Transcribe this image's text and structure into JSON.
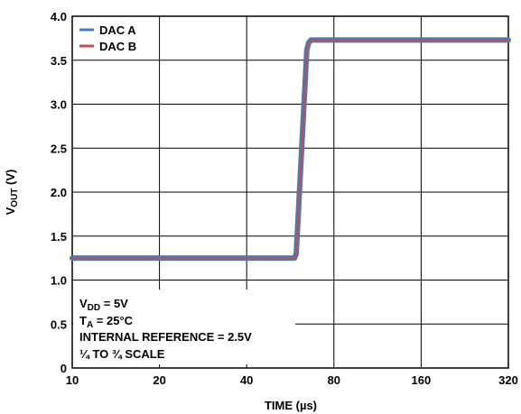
{
  "chart_data": {
    "type": "line",
    "xlabel": "TIME (µs)",
    "ylabel_main": "V",
    "ylabel_sub": "OUT",
    "ylabel_unit": " (V)",
    "x_ticks": [
      "10",
      "20",
      "40",
      "80",
      "160",
      "320"
    ],
    "x_scale": "log2",
    "xlim": [
      10,
      320
    ],
    "ylim": [
      0,
      4.0
    ],
    "y_ticks": [
      "0",
      "0.5",
      "1.0",
      "1.5",
      "2.0",
      "2.5",
      "3.0",
      "3.5",
      "4.0"
    ],
    "grid": true,
    "legend_position": "top-left",
    "series": [
      {
        "name": "DAC A",
        "color": "#4a79b8",
        "x": [
          10,
          58.5,
          59.3,
          64.5,
          65.5,
          66.7,
          320
        ],
        "y": [
          1.25,
          1.25,
          1.3,
          3.62,
          3.7,
          3.73,
          3.73
        ]
      },
      {
        "name": "DAC B",
        "color": "#c0504d",
        "x": [
          10,
          58.5,
          59.3,
          64.5,
          65.5,
          66.7,
          320
        ],
        "y": [
          1.25,
          1.25,
          1.3,
          3.62,
          3.7,
          3.73,
          3.73
        ]
      }
    ],
    "notes": {
      "vdd_main": "V",
      "vdd_sub": "DD",
      "vdd_rest": " = 5V",
      "ta_main": "T",
      "ta_sub": "A",
      "ta_rest": " = 25°C",
      "line3": "INTERNAL REFERENCE = 2.5V",
      "line4": "¼ TO ¾ SCALE"
    }
  }
}
